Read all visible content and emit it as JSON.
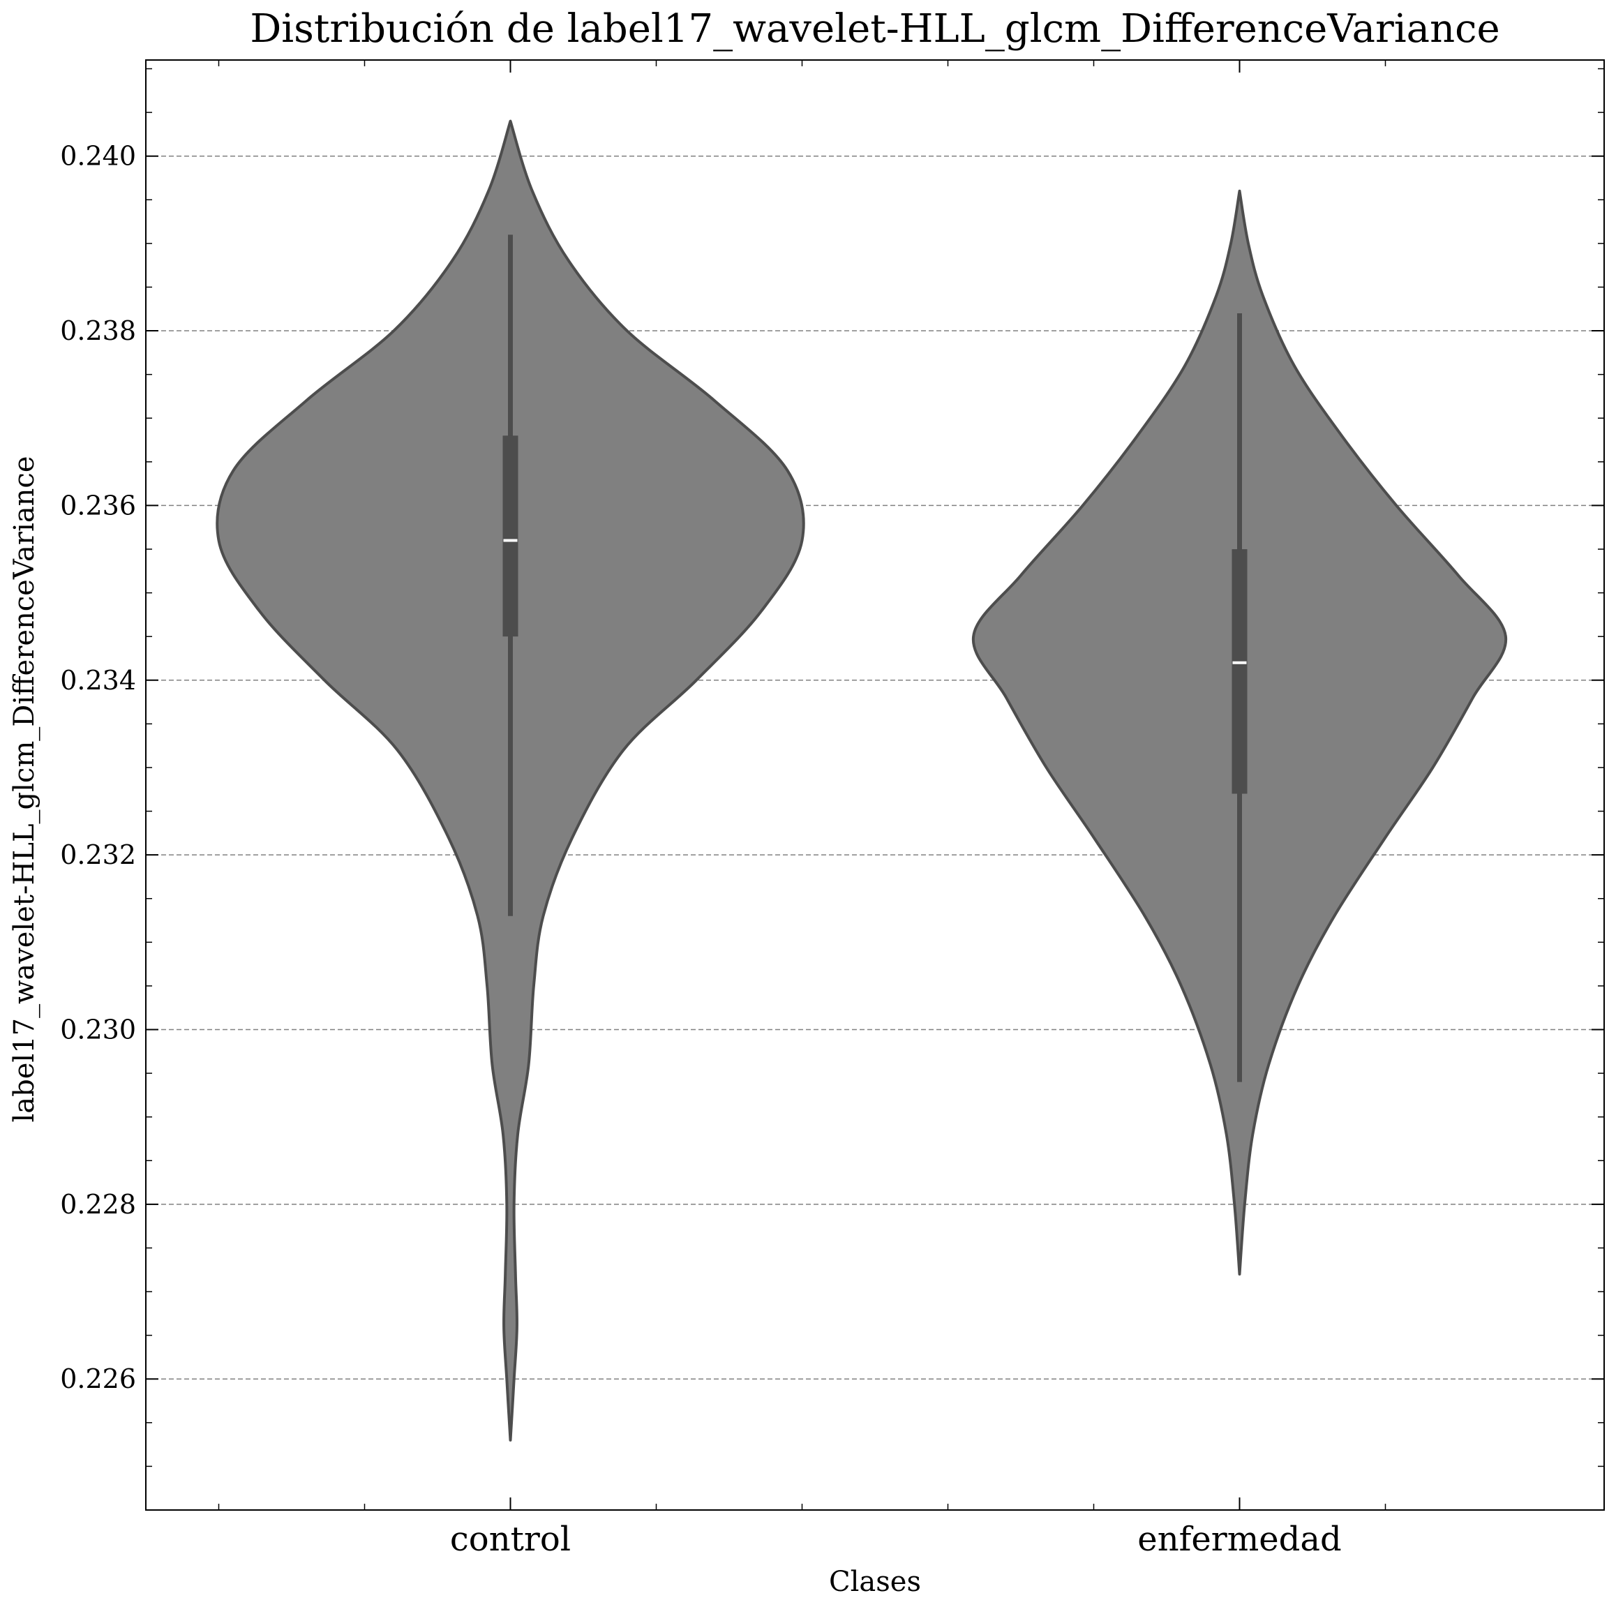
{
  "chart_data": {
    "type": "violin",
    "title": "Distribución de label17_wavelet-HLL_glcm_DifferenceVariance",
    "xlabel": "Clases",
    "ylabel": "label17_wavelet-HLL_glcm_DifferenceVariance",
    "categories": [
      "control",
      "enfermedad"
    ],
    "ylim": [
      0.2245,
      0.2411
    ],
    "yticks": [
      0.226,
      0.228,
      0.23,
      0.232,
      0.234,
      0.236,
      0.238,
      0.24
    ],
    "ytick_labels": [
      "0.226",
      "0.228",
      "0.230",
      "0.232",
      "0.234",
      "0.236",
      "0.238",
      "0.240"
    ],
    "grid": "y-dashed",
    "colors": {
      "fill": "#808080",
      "edge": "#4d4d4d",
      "box": "#4d4d4d",
      "median": "#ffffff",
      "grid": "#808080"
    },
    "violins": [
      {
        "category": "control",
        "min": 0.2253,
        "max": 0.2404,
        "whisker_low": 0.2313,
        "whisker_high": 0.2391,
        "q1": 0.2345,
        "median": 0.2356,
        "q3": 0.2368,
        "density": [
          [
            0.2253,
            0.0
          ],
          [
            0.226,
            0.005
          ],
          [
            0.2266,
            0.009
          ],
          [
            0.2272,
            0.007
          ],
          [
            0.228,
            0.005
          ],
          [
            0.2288,
            0.01
          ],
          [
            0.2296,
            0.025
          ],
          [
            0.2305,
            0.032
          ],
          [
            0.2313,
            0.045
          ],
          [
            0.2322,
            0.085
          ],
          [
            0.2332,
            0.155
          ],
          [
            0.234,
            0.255
          ],
          [
            0.2348,
            0.345
          ],
          [
            0.2356,
            0.4
          ],
          [
            0.2364,
            0.38
          ],
          [
            0.2372,
            0.28
          ],
          [
            0.238,
            0.16
          ],
          [
            0.2388,
            0.08
          ],
          [
            0.2396,
            0.03
          ],
          [
            0.2404,
            0.0
          ]
        ]
      },
      {
        "category": "enfermedad",
        "min": 0.2272,
        "max": 0.2396,
        "whisker_low": 0.2294,
        "whisker_high": 0.2382,
        "q1": 0.2327,
        "median": 0.2342,
        "q3": 0.2355,
        "density": [
          [
            0.2272,
            0.0
          ],
          [
            0.228,
            0.007
          ],
          [
            0.2288,
            0.018
          ],
          [
            0.2296,
            0.04
          ],
          [
            0.2305,
            0.08
          ],
          [
            0.2313,
            0.13
          ],
          [
            0.2322,
            0.2
          ],
          [
            0.233,
            0.265
          ],
          [
            0.2338,
            0.32
          ],
          [
            0.2345,
            0.365
          ],
          [
            0.2352,
            0.3
          ],
          [
            0.236,
            0.215
          ],
          [
            0.2368,
            0.14
          ],
          [
            0.2376,
            0.075
          ],
          [
            0.2384,
            0.032
          ],
          [
            0.239,
            0.012
          ],
          [
            0.2396,
            0.0
          ]
        ]
      }
    ]
  }
}
